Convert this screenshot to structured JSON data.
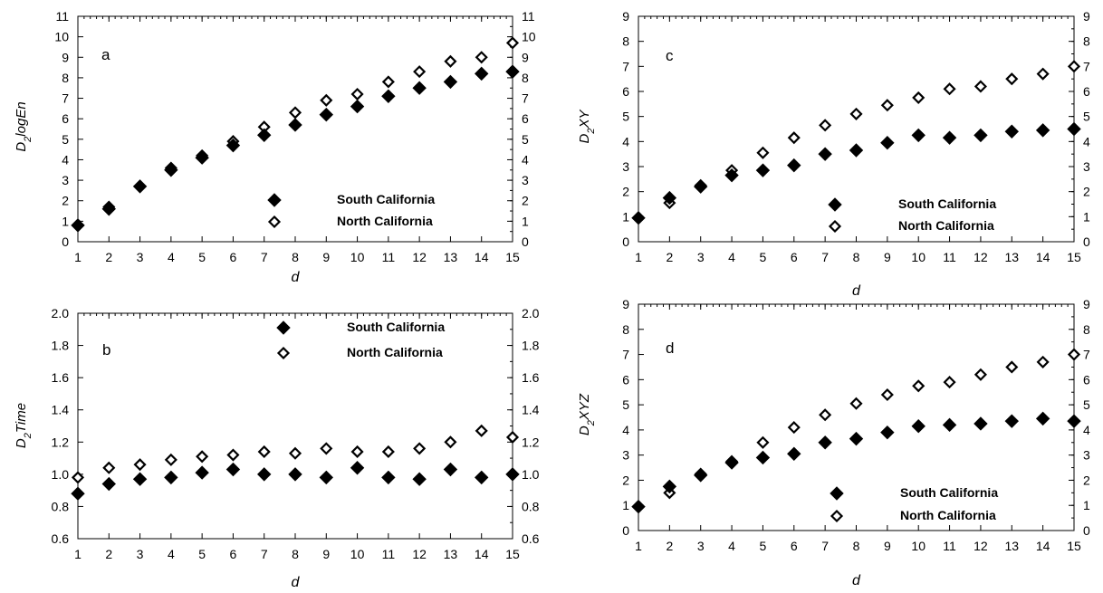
{
  "chart_data": [
    {
      "type": "scatter",
      "panel_label": "a",
      "xlabel": "d",
      "ylabel_main": "D",
      "ylabel_sub": "2",
      "ylabel_rest": "logEn",
      "xlim": [
        1,
        15
      ],
      "ylim": [
        0,
        11
      ],
      "xticks": [
        1,
        2,
        3,
        4,
        5,
        6,
        7,
        8,
        9,
        10,
        11,
        12,
        13,
        14,
        15
      ],
      "yticks": [
        0,
        1,
        2,
        3,
        4,
        5,
        6,
        7,
        8,
        9,
        10,
        11
      ],
      "x": [
        1,
        2,
        3,
        4,
        5,
        6,
        7,
        8,
        9,
        10,
        11,
        12,
        13,
        14,
        15
      ],
      "series": [
        {
          "name": "South California",
          "marker": "filled-diamond",
          "values": [
            0.8,
            1.6,
            2.7,
            3.5,
            4.1,
            4.7,
            5.2,
            5.7,
            6.2,
            6.6,
            7.1,
            7.5,
            7.8,
            8.2,
            8.3
          ]
        },
        {
          "name": "North California",
          "marker": "open-diamond",
          "values": [
            0.8,
            1.7,
            2.7,
            3.6,
            4.2,
            4.9,
            5.6,
            6.3,
            6.9,
            7.2,
            7.8,
            8.3,
            8.8,
            9.0,
            9.7
          ]
        }
      ],
      "legend_placement": "bottom-right"
    },
    {
      "type": "scatter",
      "panel_label": "b",
      "xlabel": "d",
      "ylabel_main": "D",
      "ylabel_sub": "2",
      "ylabel_rest": "Time",
      "xlim": [
        1,
        15
      ],
      "ylim": [
        0.6,
        2.0
      ],
      "xticks": [
        1,
        2,
        3,
        4,
        5,
        6,
        7,
        8,
        9,
        10,
        11,
        12,
        13,
        14,
        15
      ],
      "yticks": [
        "0.6",
        "0.8",
        "1.0",
        "1.2",
        "1.4",
        "1.6",
        "1.8",
        "2.0"
      ],
      "x": [
        1,
        2,
        3,
        4,
        5,
        6,
        7,
        8,
        9,
        10,
        11,
        12,
        13,
        14,
        15
      ],
      "series": [
        {
          "name": "South California",
          "marker": "filled-diamond",
          "values": [
            0.88,
            0.94,
            0.97,
            0.98,
            1.01,
            1.03,
            1.0,
            1.0,
            0.98,
            1.04,
            0.98,
            0.97,
            1.03,
            0.98,
            1.0
          ]
        },
        {
          "name": "North California",
          "marker": "open-diamond",
          "values": [
            0.98,
            1.04,
            1.06,
            1.09,
            1.11,
            1.12,
            1.14,
            1.13,
            1.16,
            1.14,
            1.14,
            1.16,
            1.2,
            1.27,
            1.23
          ]
        }
      ],
      "legend_placement": "top-right"
    },
    {
      "type": "scatter",
      "panel_label": "c",
      "xlabel": "d",
      "ylabel_main": "D",
      "ylabel_sub": "2",
      "ylabel_rest": "XY",
      "xlim": [
        1,
        15
      ],
      "ylim": [
        0,
        9
      ],
      "xticks": [
        1,
        2,
        3,
        4,
        5,
        6,
        7,
        8,
        9,
        10,
        11,
        12,
        13,
        14,
        15
      ],
      "yticks": [
        0,
        1,
        2,
        3,
        4,
        5,
        6,
        7,
        8,
        9
      ],
      "x": [
        1,
        2,
        3,
        4,
        5,
        6,
        7,
        8,
        9,
        10,
        11,
        12,
        13,
        14,
        15
      ],
      "series": [
        {
          "name": "South  California",
          "marker": "filled-diamond",
          "values": [
            0.95,
            1.75,
            2.2,
            2.65,
            2.85,
            3.05,
            3.5,
            3.65,
            3.95,
            4.25,
            4.15,
            4.25,
            4.4,
            4.45,
            4.5
          ]
        },
        {
          "name": "North California",
          "marker": "open-diamond",
          "values": [
            0.95,
            1.55,
            2.25,
            2.85,
            3.55,
            4.15,
            4.65,
            5.1,
            5.45,
            5.75,
            6.1,
            6.2,
            6.5,
            6.7,
            7.0
          ]
        }
      ],
      "legend_placement": "bottom-right"
    },
    {
      "type": "scatter",
      "panel_label": "d",
      "xlabel": "d",
      "ylabel_main": "D",
      "ylabel_sub": "2",
      "ylabel_rest": "XYZ",
      "xlim": [
        1,
        15
      ],
      "ylim": [
        0,
        9
      ],
      "xticks": [
        1,
        2,
        3,
        4,
        5,
        6,
        7,
        8,
        9,
        10,
        11,
        12,
        13,
        14,
        15
      ],
      "yticks": [
        0,
        1,
        2,
        3,
        4,
        5,
        6,
        7,
        8,
        9
      ],
      "x": [
        1,
        2,
        3,
        4,
        5,
        6,
        7,
        8,
        9,
        10,
        11,
        12,
        13,
        14,
        15
      ],
      "series": [
        {
          "name": "South California",
          "marker": "filled-diamond",
          "values": [
            0.95,
            1.75,
            2.2,
            2.7,
            2.9,
            3.05,
            3.5,
            3.65,
            3.9,
            4.15,
            4.2,
            4.25,
            4.35,
            4.45,
            4.35
          ]
        },
        {
          "name": "North California",
          "marker": "open-diamond",
          "values": [
            0.95,
            1.5,
            2.25,
            2.75,
            3.5,
            4.1,
            4.6,
            5.05,
            5.4,
            5.75,
            5.9,
            6.2,
            6.5,
            6.7,
            7.0
          ]
        }
      ],
      "legend_placement": "bottom-right"
    }
  ]
}
